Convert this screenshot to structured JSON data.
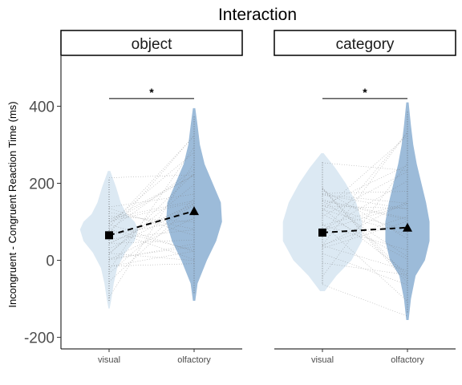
{
  "chart_data": {
    "type": "violin",
    "title": "Interaction",
    "ylabel": "Incongruent - Congruent Reaction Time (ms)",
    "xlabel": "",
    "ylim": [
      -230,
      530
    ],
    "yticks": [
      -200,
      0,
      200,
      400
    ],
    "categories": [
      "visual",
      "olfactory"
    ],
    "colors": {
      "visual": "#dce9f3",
      "olfactory": "#9cbbd9"
    },
    "panels": [
      {
        "label": "object",
        "significance": "*",
        "bracket_y": 420,
        "means": {
          "visual": 65,
          "olfactory": 128
        },
        "ranges": {
          "visual": [
            -125,
            232
          ],
          "olfactory": [
            -105,
            395
          ]
        },
        "outline": {
          "visual": [
            [
              -125,
              0.5
            ],
            [
              -100,
              2
            ],
            [
              -60,
              4
            ],
            [
              -20,
              7
            ],
            [
              20,
              14
            ],
            [
              50,
              22
            ],
            [
              80,
              25
            ],
            [
              100,
              22
            ],
            [
              120,
              15
            ],
            [
              150,
              10
            ],
            [
              190,
              6
            ],
            [
              232,
              1
            ]
          ],
          "olfactory": [
            [
              -105,
              1
            ],
            [
              -60,
              3
            ],
            [
              0,
              11
            ],
            [
              50,
              19
            ],
            [
              100,
              24
            ],
            [
              150,
              23
            ],
            [
              200,
              16
            ],
            [
              250,
              9
            ],
            [
              300,
              5
            ],
            [
              350,
              3
            ],
            [
              395,
              1
            ]
          ]
        }
      },
      {
        "label": "category",
        "significance": "*",
        "bracket_y": 420,
        "means": {
          "visual": 72,
          "olfactory": 85
        },
        "ranges": {
          "visual": [
            -80,
            278
          ],
          "olfactory": [
            -155,
            410
          ]
        },
        "outline": {
          "visual": [
            [
              -80,
              2
            ],
            [
              -40,
              12
            ],
            [
              0,
              25
            ],
            [
              50,
              34
            ],
            [
              100,
              34
            ],
            [
              150,
              29
            ],
            [
              200,
              20
            ],
            [
              240,
              11
            ],
            [
              278,
              1
            ]
          ],
          "olfactory": [
            [
              -155,
              1
            ],
            [
              -100,
              3
            ],
            [
              -40,
              7
            ],
            [
              0,
              15
            ],
            [
              50,
              19
            ],
            [
              100,
              19
            ],
            [
              150,
              16
            ],
            [
              200,
              12
            ],
            [
              250,
              8
            ],
            [
              300,
              5
            ],
            [
              350,
              3
            ],
            [
              410,
              1
            ]
          ]
        }
      }
    ]
  }
}
